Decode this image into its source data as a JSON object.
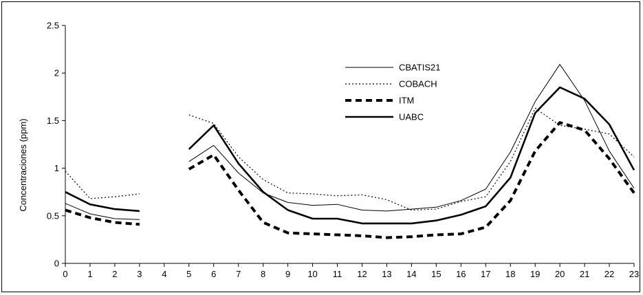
{
  "chart_data": {
    "type": "line",
    "title": "",
    "xlabel": "",
    "ylabel": "Concentraciones (ppm)",
    "xlim": [
      0,
      23
    ],
    "ylim": [
      0,
      2.5
    ],
    "x_ticks": [
      "0",
      "1",
      "2",
      "3",
      "4",
      "5",
      "6",
      "7",
      "8",
      "9",
      "10",
      "11",
      "12",
      "13",
      "14",
      "15",
      "16",
      "17",
      "18",
      "19",
      "20",
      "21",
      "22",
      "23"
    ],
    "y_ticks": [
      "0",
      "0.5",
      "1",
      "1.5",
      "2",
      "2.5"
    ],
    "grid": false,
    "legend_position": "top-center",
    "x": [
      0,
      1,
      2,
      3,
      4,
      5,
      6,
      7,
      8,
      9,
      10,
      11,
      12,
      13,
      14,
      15,
      16,
      17,
      18,
      19,
      20,
      21,
      22,
      23
    ],
    "series": [
      {
        "name": "CBATIS21",
        "style": "thin-solid",
        "color": "#000000",
        "values": [
          0.63,
          0.52,
          0.47,
          0.46,
          null,
          1.07,
          1.24,
          0.95,
          0.74,
          0.64,
          0.61,
          0.62,
          0.56,
          0.55,
          0.57,
          0.59,
          0.66,
          0.78,
          1.17,
          1.7,
          2.09,
          1.71,
          1.18,
          0.79
        ]
      },
      {
        "name": "COBACH",
        "style": "dotted",
        "color": "#000000",
        "values": [
          0.97,
          0.68,
          0.7,
          0.73,
          null,
          1.56,
          1.47,
          1.12,
          0.88,
          0.74,
          0.73,
          0.71,
          0.72,
          0.67,
          0.56,
          0.57,
          0.65,
          0.7,
          1.07,
          1.63,
          1.45,
          1.41,
          1.36,
          1.12
        ]
      },
      {
        "name": "ITM",
        "style": "thick-dashed",
        "color": "#000000",
        "values": [
          0.56,
          0.48,
          0.43,
          0.41,
          null,
          0.99,
          1.14,
          0.77,
          0.43,
          0.32,
          0.31,
          0.3,
          0.29,
          0.27,
          0.28,
          0.3,
          0.31,
          0.38,
          0.66,
          1.18,
          1.48,
          1.4,
          1.1,
          0.74
        ]
      },
      {
        "name": "UABC",
        "style": "thick-solid",
        "color": "#000000",
        "values": [
          0.75,
          0.62,
          0.57,
          0.55,
          null,
          1.2,
          1.45,
          1.05,
          0.75,
          0.56,
          0.47,
          0.47,
          0.42,
          0.42,
          0.42,
          0.45,
          0.51,
          0.6,
          0.9,
          1.58,
          1.85,
          1.73,
          1.46,
          0.98
        ]
      }
    ]
  }
}
